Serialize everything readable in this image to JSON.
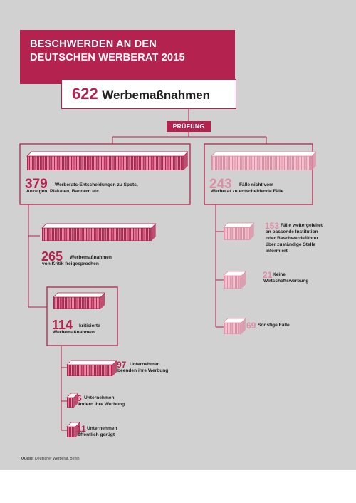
{
  "header": {
    "title_line1": "BESCHWERDEN AN DEN",
    "title_line2": "DEUTSCHEN WERBERAT 2015"
  },
  "total": {
    "value": "622",
    "label": "Werbemaßnahmen"
  },
  "check_label": "PRÜFUNG",
  "colors": {
    "accent": "#b4234f",
    "pale": "#dd8ea4",
    "background": "#d1d1d1"
  },
  "nodes": {
    "werberat": {
      "value": "379",
      "line1": "Werberats-Entscheidungen zu Spots,",
      "line2": "Anzeigen, Plakaten, Bannern etc.",
      "count": 379
    },
    "not_werberat": {
      "value": "243",
      "line1": "Fälle nicht vom",
      "line2": "Werberat zu entscheidende Fälle",
      "count": 243
    },
    "freigesprochen": {
      "value": "265",
      "line1": "Werbemaßnahmen",
      "line2": "von Kritik freigesprochen",
      "count": 265
    },
    "kritisiert": {
      "value": "114",
      "line1": "kritisierte",
      "line2": "Werbemaßnahmen",
      "count": 114
    },
    "beenden": {
      "value": "97",
      "line1": "Unternehmen",
      "line2": "beenden ihre Werbung",
      "count": 97
    },
    "aendern": {
      "value": "6",
      "line1": "Unternehmen",
      "line2": "ändern ihre Werbung",
      "count": 6
    },
    "geruegt": {
      "value": "11",
      "line1": "Unternehmen",
      "line2": "öffentlich gerügt",
      "count": 11
    },
    "weitergeleitet": {
      "value": "153",
      "line1": "Fälle weitergeleitet",
      "line2": "an passende Institution",
      "line3": "oder Beschwerdeführer",
      "line4": "über zuständige Stelle",
      "line5": "informiert",
      "count": 153
    },
    "keine": {
      "value": "21",
      "line1": "Keine",
      "line2": "Wirtschaftswerbung",
      "count": 21
    },
    "sonstige": {
      "value": "69",
      "label": "Sonstige Fälle",
      "count": 69
    }
  },
  "source": {
    "label": "Quelle:",
    "text": "Deutscher Werberat, Berlin"
  }
}
